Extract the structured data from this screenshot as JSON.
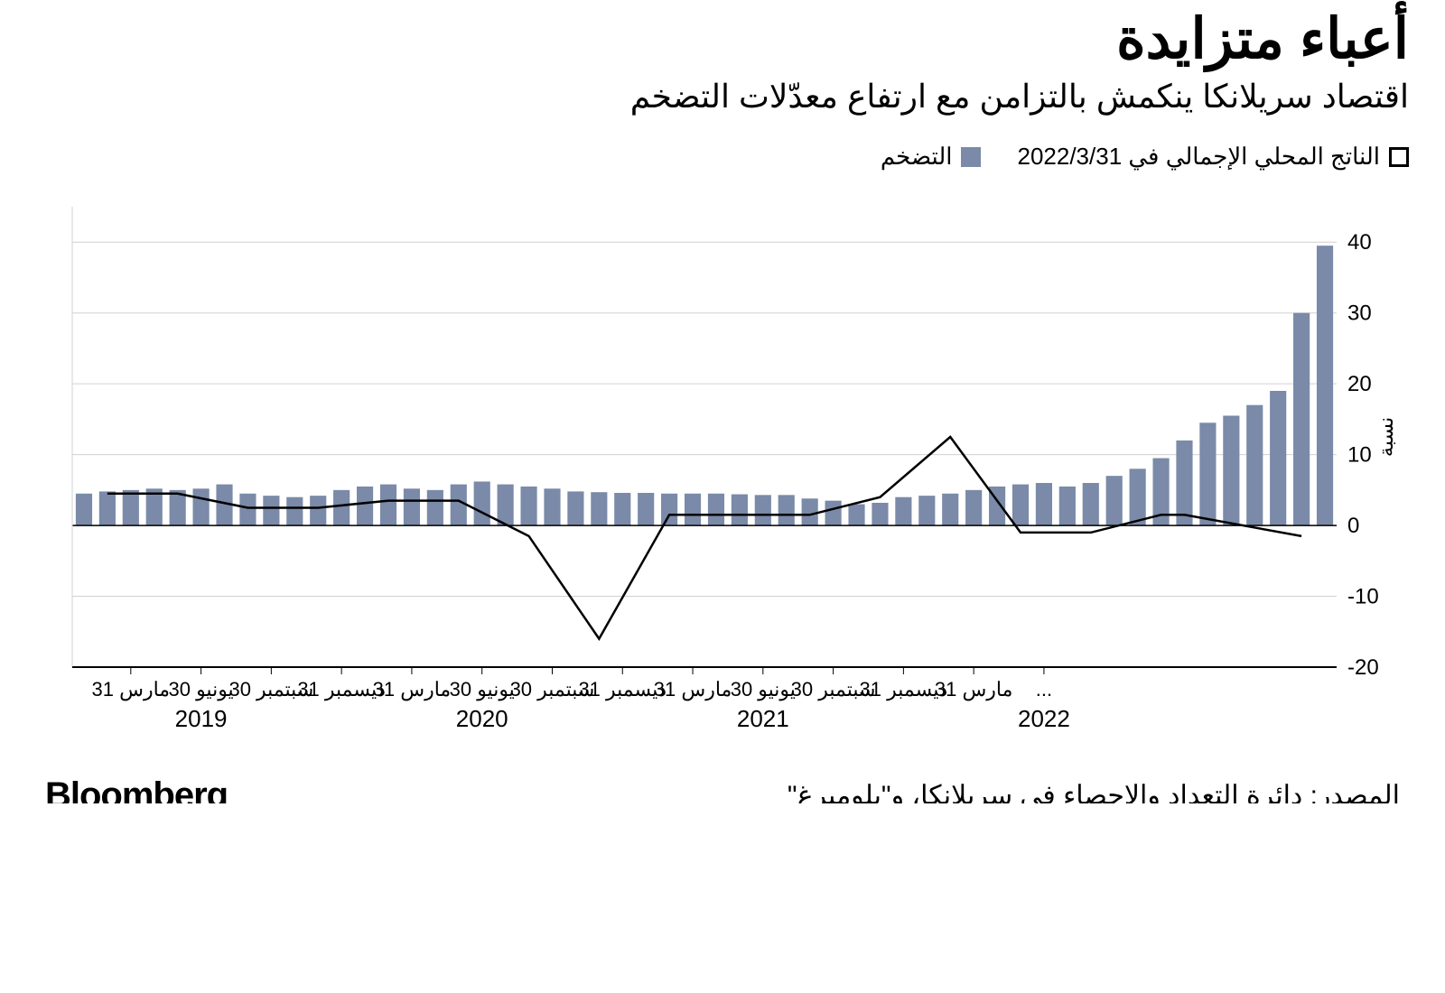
{
  "title": "أعباء متزايدة",
  "subtitle": "اقتصاد سريلانكا ينكمش بالتزامن مع ارتفاع معدّلات التضخم",
  "legend": {
    "gdp_label": "الناتج المحلي الإجمالي في 2022/3/31",
    "inflation_label": "التضخم"
  },
  "chart": {
    "type": "bar+line",
    "background_color": "#ffffff",
    "bar_color": "#7a8aa8",
    "line_color": "#000000",
    "grid_color": "#d0d0d0",
    "axis_color": "#000000",
    "title_fontsize": 62,
    "subtitle_fontsize": 36,
    "legend_fontsize": 26,
    "ylabel_fontsize": 24,
    "xlabel_fontsize": 22,
    "bar_width": 0.7,
    "line_width": 2.5,
    "ylim": [
      -20,
      45
    ],
    "yticks": [
      -20,
      -10,
      0,
      10,
      20,
      30,
      40
    ],
    "y_axis_title": "نسبة",
    "bars": [
      4.5,
      4.8,
      5.0,
      5.2,
      5.0,
      5.2,
      5.8,
      4.5,
      4.2,
      4.0,
      4.2,
      5.0,
      5.5,
      5.8,
      5.2,
      5.0,
      5.8,
      6.2,
      5.8,
      5.5,
      5.2,
      4.8,
      4.7,
      4.6,
      4.6,
      4.5,
      4.5,
      4.5,
      4.4,
      4.3,
      4.3,
      3.8,
      3.5,
      3.0,
      3.2,
      4.0,
      4.2,
      4.5,
      5.0,
      5.5,
      5.8,
      6.0,
      5.5,
      6.0,
      7.0,
      8.0,
      9.5,
      12.0,
      14.5,
      15.5,
      17.0,
      19.0,
      30.0,
      39.5
    ],
    "gdp_points": [
      {
        "i": 1,
        "v": 4.5
      },
      {
        "i": 4,
        "v": 4.5
      },
      {
        "i": 7,
        "v": 2.5
      },
      {
        "i": 10,
        "v": 2.5
      },
      {
        "i": 13,
        "v": 3.5
      },
      {
        "i": 16,
        "v": 3.5
      },
      {
        "i": 19,
        "v": -1.5
      },
      {
        "i": 22,
        "v": -16.0
      },
      {
        "i": 25,
        "v": 1.5
      },
      {
        "i": 28,
        "v": 1.5
      },
      {
        "i": 31,
        "v": 1.5
      },
      {
        "i": 34,
        "v": 4.0
      },
      {
        "i": 37,
        "v": 12.5
      },
      {
        "i": 40,
        "v": -1.0
      },
      {
        "i": 43,
        "v": -1.0
      },
      {
        "i": 46,
        "v": 1.5
      },
      {
        "i": 47,
        "v": 1.5
      },
      {
        "i": 52,
        "v": -1.5
      }
    ],
    "x_date_labels": [
      {
        "i": 2,
        "text": "31 مارس"
      },
      {
        "i": 5,
        "text": "30 يونيو"
      },
      {
        "i": 8,
        "text": "30 سبتمبر"
      },
      {
        "i": 11,
        "text": "31 ديسمبر"
      },
      {
        "i": 14,
        "text": "31 مارس"
      },
      {
        "i": 17,
        "text": "30 يونيو"
      },
      {
        "i": 20,
        "text": "30 سبتمبر"
      },
      {
        "i": 23,
        "text": "31 ديسمبر"
      },
      {
        "i": 26,
        "text": "31 مارس"
      },
      {
        "i": 29,
        "text": "30 يونيو"
      },
      {
        "i": 32,
        "text": "30 سبتمبر"
      },
      {
        "i": 35,
        "text": "31 ديسمبر"
      },
      {
        "i": 38,
        "text": "31 مارس"
      },
      {
        "i": 41,
        "text": "..."
      }
    ],
    "x_year_labels": [
      {
        "i": 5,
        "text": "2019"
      },
      {
        "i": 17,
        "text": "2020"
      },
      {
        "i": 29,
        "text": "2021"
      },
      {
        "i": 41,
        "text": "2022"
      }
    ]
  },
  "source": "المصدر: دائرة التعداد والإحصاء في سريلانكا، و\"بلومبرغ\"",
  "brand": "Bloomberg"
}
